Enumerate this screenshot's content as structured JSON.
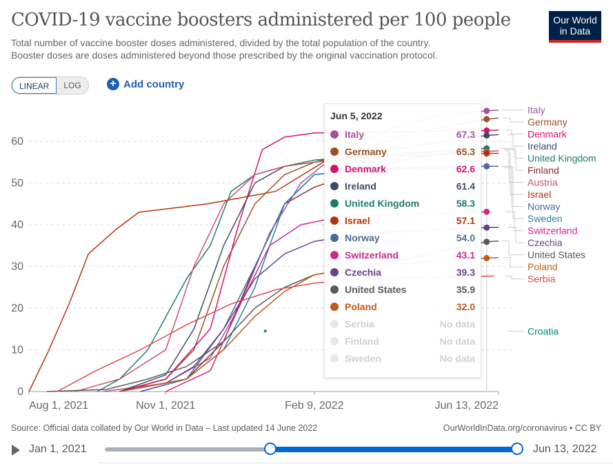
{
  "header": {
    "title": "COVID-19 vaccine boosters administered per 100 people",
    "subtitle_1": "Total number of vaccine booster doses administered, divided by the total population of the country.",
    "subtitle_2": "Booster doses are doses administered beyond those prescribed by the original vaccination protocol.",
    "logo_line1": "Our World",
    "logo_line2": "in Data"
  },
  "controls": {
    "linear_label": "LINEAR",
    "log_label": "LOG",
    "add_country_label": "Add country",
    "active_scale": "linear"
  },
  "tooltip": {
    "date": "Jun 5, 2022",
    "rows": [
      {
        "name": "Italy",
        "value": "67.3",
        "color": "#a652a0"
      },
      {
        "name": "Germany",
        "value": "65.3",
        "color": "#9a5129"
      },
      {
        "name": "Denmark",
        "value": "62.6",
        "color": "#d1136d"
      },
      {
        "name": "Ireland",
        "value": "61.4",
        "color": "#3c4e66"
      },
      {
        "name": "United Kingdom",
        "value": "58.3",
        "color": "#1f7a6c"
      },
      {
        "name": "Israel",
        "value": "57.1",
        "color": "#b13507"
      },
      {
        "name": "Norway",
        "value": "54.0",
        "color": "#4c6a9c"
      },
      {
        "name": "Switzerland",
        "value": "43.1",
        "color": "#cc2a8a"
      },
      {
        "name": "Czechia",
        "value": "39.3",
        "color": "#6d3e91"
      },
      {
        "name": "United States",
        "value": "35.9",
        "color": "#58595b"
      },
      {
        "name": "Poland",
        "value": "32.0",
        "color": "#c15a1a"
      },
      {
        "name": "Serbia",
        "value": "No data",
        "color": "#dddddd"
      },
      {
        "name": "Finland",
        "value": "No data",
        "color": "#dddddd"
      },
      {
        "name": "Sweden",
        "value": "No data",
        "color": "#dddddd"
      }
    ]
  },
  "footer": {
    "source": "Source: Official data collated by Our World in Data – Last updated 14 June 2022",
    "license": "OurWorldInData.org/coronavirus • CC BY"
  },
  "timeline": {
    "start_label": "Jan 1, 2021",
    "end_label": "Jun 13, 2022",
    "selected_start": "2021-08-01",
    "selected_end": "2022-06-13"
  },
  "chart_data": {
    "type": "line",
    "title": "COVID-19 vaccine boosters administered per 100 people",
    "xlabel": "",
    "ylabel": "",
    "xlim": [
      "2021-08-01",
      "2022-06-13"
    ],
    "ylim": [
      0,
      70
    ],
    "yticks": [
      0,
      10,
      20,
      30,
      40,
      50,
      60
    ],
    "xticks": [
      {
        "date": "2021-08-01",
        "label": "Aug 1, 2021"
      },
      {
        "date": "2021-11-01",
        "label": "Nov 1, 2021"
      },
      {
        "date": "2022-02-09",
        "label": "Feb 9, 2022"
      },
      {
        "date": "2022-06-13",
        "label": "Jun 13, 2022"
      }
    ],
    "grid": true,
    "hover_date": "2022-06-05",
    "series": [
      {
        "name": "Italy",
        "color": "#a652a0",
        "points": [
          [
            "2021-09-20",
            0
          ],
          [
            "2021-11-01",
            2
          ],
          [
            "2021-12-01",
            8
          ],
          [
            "2021-12-20",
            20
          ],
          [
            "2022-01-10",
            38
          ],
          [
            "2022-01-31",
            50
          ],
          [
            "2022-02-28",
            58
          ],
          [
            "2022-04-01",
            63
          ],
          [
            "2022-05-01",
            66
          ],
          [
            "2022-06-05",
            67.3
          ],
          [
            "2022-06-13",
            67.5
          ]
        ]
      },
      {
        "name": "Germany",
        "color": "#9a5129",
        "points": [
          [
            "2021-10-01",
            0
          ],
          [
            "2021-11-01",
            3
          ],
          [
            "2021-11-20",
            10
          ],
          [
            "2021-12-10",
            30
          ],
          [
            "2021-12-31",
            45
          ],
          [
            "2022-01-20",
            52
          ],
          [
            "2022-02-09",
            55
          ],
          [
            "2022-03-15",
            58
          ],
          [
            "2022-04-15",
            62
          ],
          [
            "2022-06-05",
            65.3
          ],
          [
            "2022-06-13",
            65.6
          ]
        ]
      },
      {
        "name": "Denmark",
        "color": "#d1136d",
        "points": [
          [
            "2021-10-01",
            0
          ],
          [
            "2021-11-01",
            3
          ],
          [
            "2021-12-01",
            15
          ],
          [
            "2021-12-20",
            40
          ],
          [
            "2022-01-05",
            58
          ],
          [
            "2022-01-20",
            61
          ],
          [
            "2022-02-09",
            62
          ],
          [
            "2022-06-05",
            62.6
          ],
          [
            "2022-06-13",
            62.7
          ]
        ]
      },
      {
        "name": "Ireland",
        "color": "#3c4e66",
        "points": [
          [
            "2021-10-01",
            0
          ],
          [
            "2021-11-01",
            4
          ],
          [
            "2021-11-20",
            15
          ],
          [
            "2021-12-10",
            35
          ],
          [
            "2021-12-31",
            50
          ],
          [
            "2022-01-20",
            54
          ],
          [
            "2022-02-09",
            55
          ],
          [
            "2022-04-01",
            58
          ],
          [
            "2022-06-05",
            61.4
          ],
          [
            "2022-06-13",
            61.6
          ]
        ]
      },
      {
        "name": "United Kingdom",
        "color": "#1f7a6c",
        "points": [
          [
            "2021-09-16",
            0
          ],
          [
            "2021-10-01",
            3
          ],
          [
            "2021-10-20",
            10
          ],
          [
            "2021-11-15",
            27
          ],
          [
            "2021-12-01",
            35
          ],
          [
            "2021-12-15",
            48
          ],
          [
            "2021-12-31",
            52
          ],
          [
            "2022-01-20",
            54
          ],
          [
            "2022-02-09",
            55.5
          ],
          [
            "2022-04-01",
            57
          ],
          [
            "2022-06-05",
            58.3
          ]
        ]
      },
      {
        "name": "Finland",
        "color": "#883039",
        "points": [
          [
            "2021-10-15",
            0
          ],
          [
            "2021-11-15",
            3
          ],
          [
            "2021-12-10",
            12
          ],
          [
            "2021-12-31",
            30
          ],
          [
            "2022-01-20",
            45
          ],
          [
            "2022-02-09",
            49
          ],
          [
            "2022-03-15",
            53
          ],
          [
            "2022-04-15",
            56
          ],
          [
            "2022-05-31",
            58.0
          ]
        ]
      },
      {
        "name": "Austria",
        "color": "#cf4f68",
        "points": [
          [
            "2021-09-01",
            0
          ],
          [
            "2021-10-01",
            3
          ],
          [
            "2021-11-01",
            10
          ],
          [
            "2021-11-20",
            30
          ],
          [
            "2021-12-10",
            45
          ],
          [
            "2021-12-31",
            52
          ],
          [
            "2022-01-20",
            54
          ],
          [
            "2022-02-09",
            55
          ],
          [
            "2022-04-01",
            57
          ],
          [
            "2022-06-05",
            57.6
          ],
          [
            "2022-06-13",
            57.7
          ]
        ]
      },
      {
        "name": "Israel",
        "color": "#b13507",
        "points": [
          [
            "2021-08-01",
            0
          ],
          [
            "2021-08-14",
            9.6
          ],
          [
            "2021-08-28",
            21
          ],
          [
            "2021-09-10",
            33
          ],
          [
            "2021-09-29",
            39
          ],
          [
            "2021-10-14",
            43
          ],
          [
            "2021-11-29",
            45
          ],
          [
            "2022-01-14",
            48
          ],
          [
            "2022-02-15",
            55
          ],
          [
            "2022-04-01",
            56.5
          ],
          [
            "2022-06-05",
            57.1
          ],
          [
            "2022-06-13",
            57.1
          ]
        ]
      },
      {
        "name": "Norway",
        "color": "#4c6a9c",
        "points": [
          [
            "2021-10-15",
            0
          ],
          [
            "2021-11-15",
            3
          ],
          [
            "2021-12-10",
            15
          ],
          [
            "2021-12-31",
            30
          ],
          [
            "2022-01-20",
            45
          ],
          [
            "2022-02-09",
            52
          ],
          [
            "2022-03-15",
            53.5
          ],
          [
            "2022-06-05",
            54.0
          ],
          [
            "2022-06-13",
            54.0
          ]
        ]
      },
      {
        "name": "Sweden",
        "color": "#2d7ea0",
        "points": [
          [
            "2021-10-01",
            0
          ],
          [
            "2021-11-15",
            3
          ],
          [
            "2021-12-10",
            10
          ],
          [
            "2021-12-31",
            25
          ],
          [
            "2022-01-20",
            45
          ],
          [
            "2022-02-09",
            52
          ],
          [
            "2022-03-15",
            53.3
          ],
          [
            "2022-05-25",
            53.7
          ]
        ]
      },
      {
        "name": "Switzerland",
        "color": "#cc2a8a",
        "points": [
          [
            "2021-11-01",
            0
          ],
          [
            "2021-12-01",
            5
          ],
          [
            "2021-12-20",
            20
          ],
          [
            "2022-01-10",
            35
          ],
          [
            "2022-01-31",
            40
          ],
          [
            "2022-02-28",
            42
          ],
          [
            "2022-06-05",
            43.1
          ]
        ]
      },
      {
        "name": "Czechia",
        "color": "#6d3e91",
        "points": [
          [
            "2021-10-01",
            0
          ],
          [
            "2021-11-01",
            2
          ],
          [
            "2021-11-20",
            6
          ],
          [
            "2021-12-10",
            15
          ],
          [
            "2021-12-31",
            27
          ],
          [
            "2022-01-20",
            33
          ],
          [
            "2022-02-09",
            36
          ],
          [
            "2022-03-15",
            38
          ],
          [
            "2022-06-05",
            39.3
          ],
          [
            "2022-06-13",
            39.4
          ]
        ]
      },
      {
        "name": "United States",
        "color": "#58595b",
        "points": [
          [
            "2021-08-13",
            0
          ],
          [
            "2021-09-22",
            0.5
          ],
          [
            "2021-10-20",
            3
          ],
          [
            "2021-11-15",
            6
          ],
          [
            "2021-12-10",
            12
          ],
          [
            "2021-12-31",
            20
          ],
          [
            "2022-01-20",
            25
          ],
          [
            "2022-02-09",
            28
          ],
          [
            "2022-03-15",
            30
          ],
          [
            "2022-04-15",
            32
          ],
          [
            "2022-06-05",
            35.9
          ],
          [
            "2022-06-13",
            36.1
          ]
        ]
      },
      {
        "name": "Poland",
        "color": "#c15a1a",
        "points": [
          [
            "2021-10-01",
            0
          ],
          [
            "2021-11-15",
            3
          ],
          [
            "2021-12-10",
            10
          ],
          [
            "2021-12-31",
            18
          ],
          [
            "2022-01-20",
            24
          ],
          [
            "2022-02-09",
            28
          ],
          [
            "2022-03-15",
            30
          ],
          [
            "2022-06-05",
            32.0
          ],
          [
            "2022-06-13",
            32.1
          ]
        ]
      },
      {
        "name": "Serbia",
        "color": "#e0464f",
        "points": [
          [
            "2021-08-20",
            0
          ],
          [
            "2021-09-15",
            5
          ],
          [
            "2021-10-15",
            10
          ],
          [
            "2021-11-15",
            16
          ],
          [
            "2021-12-15",
            21
          ],
          [
            "2022-01-15",
            24.5
          ],
          [
            "2022-02-09",
            26
          ],
          [
            "2022-03-15",
            27
          ],
          [
            "2022-06-10",
            27.7
          ]
        ]
      },
      {
        "name": "Croatia",
        "color": "#00847e",
        "points": [
          [
            "2022-01-07",
            14.5
          ]
        ]
      }
    ]
  }
}
